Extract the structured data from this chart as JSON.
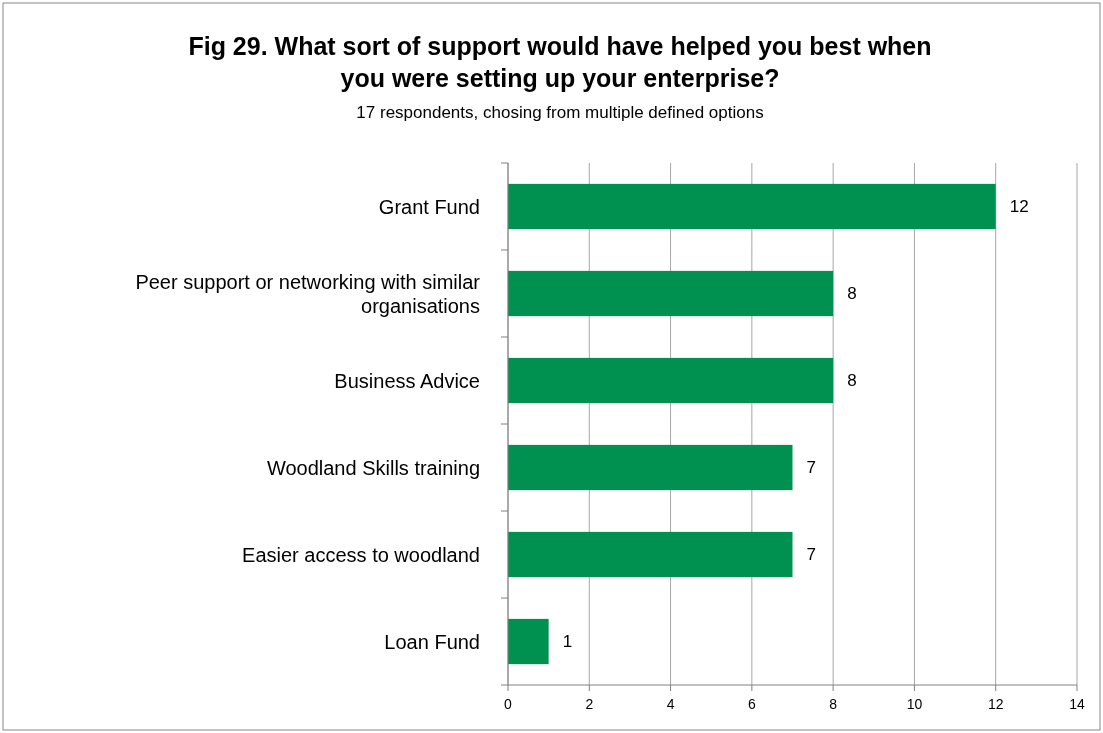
{
  "chart_data": {
    "type": "bar",
    "orientation": "horizontal",
    "title": "Fig 29. What sort of support would have helped you best when you were setting up your enterprise?",
    "subtitle": "17 respondents, chosing from multiple defined options",
    "categories": [
      "Grant Fund",
      "Peer support or networking with similar organisations",
      "Business Advice",
      "Woodland Skills training",
      "Easier access to woodland",
      "Loan Fund"
    ],
    "values": [
      12,
      8,
      8,
      7,
      7,
      1
    ],
    "color": "#009150",
    "xlim": [
      0,
      14
    ],
    "xticks": [
      0,
      2,
      4,
      6,
      8,
      10,
      12,
      14
    ],
    "grid": "x",
    "data_labels": true
  }
}
